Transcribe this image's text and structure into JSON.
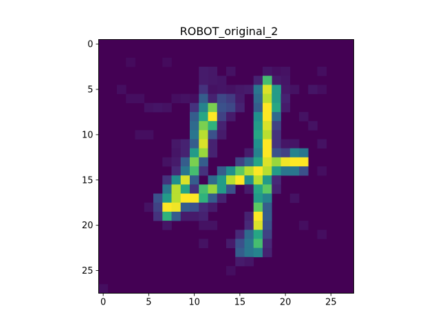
{
  "chart_data": {
    "type": "heatmap",
    "title": "ROBOT_original_2",
    "xlabel": "",
    "ylabel": "",
    "colormap": "viridis",
    "value_range": [
      0,
      1
    ],
    "xlim": [
      -0.5,
      27.5
    ],
    "ylim": [
      27.5,
      -0.5
    ],
    "x_ticks": [
      0,
      5,
      10,
      15,
      20,
      25
    ],
    "y_ticks": [
      0,
      5,
      10,
      15,
      20,
      25
    ],
    "x_tick_labels": [
      "0",
      "5",
      "10",
      "15",
      "20",
      "25"
    ],
    "y_tick_labels": [
      "0",
      "5",
      "10",
      "15",
      "20",
      "25"
    ],
    "rows": 28,
    "cols": 28,
    "cells": [
      [
        0,
        27,
        0.04
      ],
      [
        7,
        2,
        0.03
      ],
      [
        3,
        2,
        0.03
      ],
      [
        24,
        3,
        0.04
      ],
      [
        19,
        3,
        0.04
      ],
      [
        14,
        3,
        0.05
      ],
      [
        11,
        3,
        0.08
      ],
      [
        12,
        3,
        0.07
      ],
      [
        11,
        4,
        0.08
      ],
      [
        12,
        4,
        0.07
      ],
      [
        13,
        4,
        0.06
      ],
      [
        20,
        3,
        0.05
      ],
      [
        18,
        3,
        0.06
      ],
      [
        17,
        4,
        0.1
      ],
      [
        19,
        4,
        0.08
      ],
      [
        20,
        4,
        0.06
      ],
      [
        15,
        5,
        0.07
      ],
      [
        16,
        5,
        0.08
      ],
      [
        19,
        5,
        0.08
      ],
      [
        20,
        5,
        0.07
      ],
      [
        21,
        5,
        0.05
      ],
      [
        23,
        5,
        0.06
      ],
      [
        24,
        5,
        0.04
      ],
      [
        2,
        5,
        0.04
      ],
      [
        3,
        6,
        0.04
      ],
      [
        4,
        6,
        0.04
      ],
      [
        8,
        6,
        0.04
      ],
      [
        18,
        4,
        0.7
      ],
      [
        11,
        5,
        0.15
      ],
      [
        12,
        5,
        0.05
      ],
      [
        13,
        5,
        0.06
      ],
      [
        14,
        5,
        0.05
      ],
      [
        17,
        5,
        0.4
      ],
      [
        18,
        5,
        0.95
      ],
      [
        19,
        5,
        0.55
      ],
      [
        9,
        6,
        0.05
      ],
      [
        10,
        6,
        0.04
      ],
      [
        11,
        6,
        0.3
      ],
      [
        12,
        6,
        0.1
      ],
      [
        13,
        6,
        0.22
      ],
      [
        14,
        6,
        0.18
      ],
      [
        15,
        6,
        0.08
      ],
      [
        17,
        6,
        0.35
      ],
      [
        18,
        6,
        0.9
      ],
      [
        19,
        6,
        0.55
      ],
      [
        20,
        6,
        0.1
      ],
      [
        5,
        7,
        0.05
      ],
      [
        6,
        7,
        0.06
      ],
      [
        7,
        7,
        0.05
      ],
      [
        10,
        7,
        0.15
      ],
      [
        11,
        7,
        0.45
      ],
      [
        12,
        7,
        0.8
      ],
      [
        13,
        7,
        0.25
      ],
      [
        14,
        7,
        0.22
      ],
      [
        15,
        7,
        0.1
      ],
      [
        17,
        7,
        0.3
      ],
      [
        18,
        7,
        1.0
      ],
      [
        19,
        7,
        0.6
      ],
      [
        20,
        7,
        0.08
      ],
      [
        10,
        8,
        0.3
      ],
      [
        11,
        8,
        0.6
      ],
      [
        12,
        8,
        1.0
      ],
      [
        13,
        8,
        0.2
      ],
      [
        14,
        8,
        0.08
      ],
      [
        17,
        8,
        0.5
      ],
      [
        18,
        8,
        1.0
      ],
      [
        19,
        8,
        0.35
      ],
      [
        22,
        8,
        0.05
      ],
      [
        10,
        9,
        0.35
      ],
      [
        11,
        9,
        0.8
      ],
      [
        12,
        9,
        0.65
      ],
      [
        13,
        9,
        0.1
      ],
      [
        17,
        9,
        0.55
      ],
      [
        18,
        9,
        0.95
      ],
      [
        19,
        9,
        0.2
      ],
      [
        23,
        9,
        0.05
      ],
      [
        10,
        10,
        0.4
      ],
      [
        11,
        10,
        0.9
      ],
      [
        12,
        10,
        0.25
      ],
      [
        13,
        10,
        0.08
      ],
      [
        17,
        10,
        0.6
      ],
      [
        18,
        10,
        0.9
      ],
      [
        19,
        10,
        0.15
      ],
      [
        4,
        10,
        0.04
      ],
      [
        5,
        10,
        0.04
      ],
      [
        8,
        11,
        0.07
      ],
      [
        9,
        11,
        0.1
      ],
      [
        10,
        11,
        0.3
      ],
      [
        11,
        11,
        0.95
      ],
      [
        12,
        11,
        0.1
      ],
      [
        17,
        11,
        0.5
      ],
      [
        18,
        11,
        1.0
      ],
      [
        19,
        11,
        0.15
      ],
      [
        20,
        11,
        0.06
      ],
      [
        21,
        11,
        0.06
      ],
      [
        24,
        11,
        0.05
      ],
      [
        8,
        12,
        0.06
      ],
      [
        9,
        12,
        0.1
      ],
      [
        10,
        12,
        0.55
      ],
      [
        11,
        12,
        0.85
      ],
      [
        12,
        12,
        0.1
      ],
      [
        16,
        12,
        0.08
      ],
      [
        17,
        12,
        0.45
      ],
      [
        18,
        12,
        1.0
      ],
      [
        19,
        12,
        0.25
      ],
      [
        20,
        12,
        0.2
      ],
      [
        21,
        12,
        0.45
      ],
      [
        22,
        12,
        0.4
      ],
      [
        7,
        13,
        0.05
      ],
      [
        8,
        13,
        0.08
      ],
      [
        9,
        13,
        0.3
      ],
      [
        10,
        13,
        0.8
      ],
      [
        11,
        13,
        0.3
      ],
      [
        15,
        13,
        0.2
      ],
      [
        16,
        13,
        0.35
      ],
      [
        17,
        13,
        0.6
      ],
      [
        18,
        13,
        0.95
      ],
      [
        19,
        13,
        0.85
      ],
      [
        20,
        13,
        0.98
      ],
      [
        21,
        13,
        1.0
      ],
      [
        22,
        13,
        1.0
      ],
      [
        8,
        14,
        0.12
      ],
      [
        9,
        14,
        0.4
      ],
      [
        10,
        14,
        0.7
      ],
      [
        11,
        14,
        0.15
      ],
      [
        13,
        14,
        0.3
      ],
      [
        14,
        14,
        0.5
      ],
      [
        15,
        14,
        0.75
      ],
      [
        16,
        14,
        0.9
      ],
      [
        17,
        14,
        1.0
      ],
      [
        18,
        14,
        0.9
      ],
      [
        19,
        14,
        0.55
      ],
      [
        20,
        14,
        0.4
      ],
      [
        21,
        14,
        0.4
      ],
      [
        22,
        14,
        0.25
      ],
      [
        24,
        14,
        0.04
      ],
      [
        7,
        15,
        0.15
      ],
      [
        8,
        15,
        0.5
      ],
      [
        9,
        15,
        0.95
      ],
      [
        10,
        15,
        0.3
      ],
      [
        12,
        15,
        0.35
      ],
      [
        13,
        15,
        0.55
      ],
      [
        14,
        15,
        0.9
      ],
      [
        15,
        15,
        1.0
      ],
      [
        16,
        15,
        0.5
      ],
      [
        17,
        15,
        0.9
      ],
      [
        18,
        15,
        0.55
      ],
      [
        19,
        15,
        0.12
      ],
      [
        7,
        16,
        0.4
      ],
      [
        8,
        16,
        0.9
      ],
      [
        9,
        16,
        0.6
      ],
      [
        10,
        16,
        0.15
      ],
      [
        11,
        16,
        0.7
      ],
      [
        12,
        16,
        0.85
      ],
      [
        13,
        16,
        0.55
      ],
      [
        14,
        16,
        0.25
      ],
      [
        16,
        16,
        0.08
      ],
      [
        17,
        16,
        0.6
      ],
      [
        18,
        16,
        0.75
      ],
      [
        19,
        16,
        0.1
      ],
      [
        6,
        17,
        0.25
      ],
      [
        7,
        17,
        0.55
      ],
      [
        8,
        17,
        0.9
      ],
      [
        9,
        17,
        1.0
      ],
      [
        10,
        17,
        1.0
      ],
      [
        11,
        17,
        0.65
      ],
      [
        12,
        17,
        0.3
      ],
      [
        13,
        17,
        0.1
      ],
      [
        17,
        17,
        0.55
      ],
      [
        18,
        17,
        0.45
      ],
      [
        21,
        17,
        0.05
      ],
      [
        5,
        18,
        0.05
      ],
      [
        6,
        18,
        0.2
      ],
      [
        7,
        18,
        1.0
      ],
      [
        8,
        18,
        0.98
      ],
      [
        9,
        18,
        0.3
      ],
      [
        10,
        18,
        0.25
      ],
      [
        11,
        18,
        0.12
      ],
      [
        12,
        18,
        0.08
      ],
      [
        17,
        18,
        0.75
      ],
      [
        18,
        18,
        0.3
      ],
      [
        6,
        19,
        0.15
      ],
      [
        7,
        19,
        0.65
      ],
      [
        8,
        19,
        0.3
      ],
      [
        9,
        19,
        0.08
      ],
      [
        10,
        19,
        0.08
      ],
      [
        11,
        19,
        0.1
      ],
      [
        16,
        19,
        0.1
      ],
      [
        17,
        19,
        1.0
      ],
      [
        18,
        19,
        0.3
      ],
      [
        7,
        20,
        0.06
      ],
      [
        11,
        20,
        0.05
      ],
      [
        12,
        20,
        0.05
      ],
      [
        16,
        20,
        0.12
      ],
      [
        17,
        20,
        0.95
      ],
      [
        18,
        20,
        0.25
      ],
      [
        22,
        20,
        0.04
      ],
      [
        15,
        21,
        0.12
      ],
      [
        16,
        21,
        0.35
      ],
      [
        17,
        21,
        0.6
      ],
      [
        18,
        21,
        0.2
      ],
      [
        24,
        21,
        0.04
      ],
      [
        11,
        22,
        0.05
      ],
      [
        14,
        22,
        0.08
      ],
      [
        15,
        22,
        0.25
      ],
      [
        16,
        22,
        0.4
      ],
      [
        17,
        22,
        0.7
      ],
      [
        18,
        22,
        0.12
      ],
      [
        15,
        23,
        0.3
      ],
      [
        16,
        23,
        0.4
      ],
      [
        17,
        23,
        0.45
      ],
      [
        18,
        23,
        0.1
      ],
      [
        15,
        24,
        0.08
      ],
      [
        16,
        24,
        0.06
      ],
      [
        14,
        25,
        0.04
      ]
    ]
  }
}
